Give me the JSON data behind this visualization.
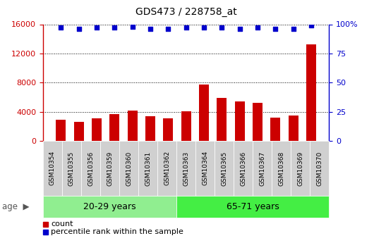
{
  "title": "GDS473 / 228758_at",
  "samples": [
    "GSM10354",
    "GSM10355",
    "GSM10356",
    "GSM10359",
    "GSM10360",
    "GSM10361",
    "GSM10362",
    "GSM10363",
    "GSM10364",
    "GSM10365",
    "GSM10366",
    "GSM10367",
    "GSM10368",
    "GSM10369",
    "GSM10370"
  ],
  "counts": [
    2900,
    2650,
    3100,
    3700,
    4200,
    3350,
    3100,
    4050,
    7700,
    5900,
    5400,
    5250,
    3200,
    3500,
    13200
  ],
  "percentiles": [
    97,
    96,
    97,
    97,
    98,
    96,
    96,
    97,
    97,
    97,
    96,
    97,
    96,
    96,
    99
  ],
  "bar_color": "#cc0000",
  "dot_color": "#0000cc",
  "ylim_left": [
    0,
    16000
  ],
  "ylim_right": [
    0,
    100
  ],
  "yticks_left": [
    0,
    4000,
    8000,
    12000,
    16000
  ],
  "yticks_right": [
    0,
    25,
    50,
    75,
    100
  ],
  "group1_label": "20-29 years",
  "group2_label": "65-71 years",
  "group1_count": 7,
  "group2_count": 8,
  "group1_color": "#90ee90",
  "group2_color": "#44ee44",
  "age_label": "age",
  "legend_count_label": "count",
  "legend_pct_label": "percentile rank within the sample",
  "bg_color": "#ffffff",
  "xticklabel_bg": "#d0d0d0"
}
